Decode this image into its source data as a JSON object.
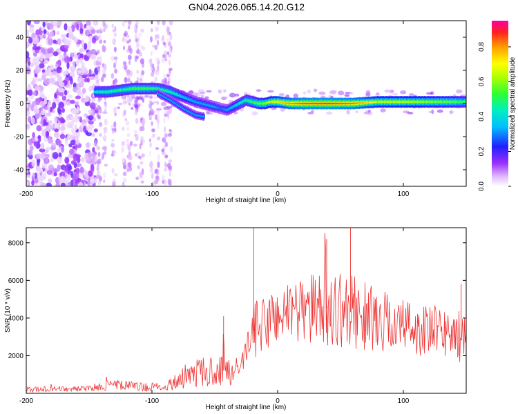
{
  "title": "GN04.2026.065.14.20.G12",
  "chart_data": [
    {
      "type": "heatmap",
      "name": "spectrogram",
      "xlabel": "Height of straight line (km)",
      "ylabel": "Frequency (Hz)",
      "xlim": [
        -200,
        150
      ],
      "ylim": [
        -50,
        50
      ],
      "xticks": [
        -200,
        -100,
        0,
        100
      ],
      "xtick_labels": [
        "-200",
        "-100",
        "0",
        "100"
      ],
      "yticks": [
        -40,
        -20,
        0,
        20,
        40
      ],
      "ytick_labels": [
        "-40",
        "-20",
        "0",
        "20",
        "40"
      ],
      "colorbar": {
        "label": "Normalized spectral amplitude",
        "range": [
          0.0,
          0.95
        ],
        "ticks": [
          0.0,
          0.2,
          0.4,
          0.6,
          0.8
        ],
        "tick_labels": [
          "0.0",
          "0.2",
          "0.4",
          "0.6",
          "0.8"
        ]
      },
      "ridge": {
        "description": "dominant frequency track vs height",
        "x": [
          -145,
          -135,
          -125,
          -115,
          -105,
          -95,
          -85,
          -75,
          -65,
          -60,
          -55,
          -50,
          -45,
          -40,
          -35,
          -30,
          -25,
          -20,
          -15,
          -10,
          -5,
          0,
          10,
          20,
          40,
          60,
          80,
          100,
          120,
          140,
          150
        ],
        "y": [
          7,
          7,
          8,
          9,
          9,
          9,
          7,
          4,
          1,
          0,
          -1,
          -2,
          -3,
          -4,
          -2,
          0,
          2,
          1,
          0,
          0,
          1,
          1,
          0,
          0,
          0,
          0,
          1,
          1,
          1,
          1,
          1
        ],
        "amplitude": [
          0.45,
          0.5,
          0.5,
          0.55,
          0.55,
          0.5,
          0.5,
          0.4,
          0.35,
          0.35,
          0.35,
          0.35,
          0.3,
          0.35,
          0.4,
          0.45,
          0.5,
          0.55,
          0.6,
          0.65,
          0.7,
          0.75,
          0.85,
          0.9,
          0.92,
          0.88,
          0.7,
          0.7,
          0.65,
          0.6,
          0.55
        ]
      },
      "secondary_ridge": {
        "x": [
          -95,
          -85,
          -75,
          -65,
          -58
        ],
        "y": [
          6,
          2,
          -3,
          -7,
          -8
        ]
      }
    },
    {
      "type": "line",
      "name": "snr",
      "xlabel": "Height of straight line (km)",
      "ylabel": "SNR (10 * v/v)",
      "xlim": [
        -200,
        150
      ],
      "ylim": [
        0,
        8800
      ],
      "xticks": [
        -200,
        -100,
        0,
        100
      ],
      "xtick_labels": [
        "-200",
        "-100",
        "0",
        "100"
      ],
      "yticks": [
        2000,
        4000,
        6000,
        8000
      ],
      "ytick_labels": [
        "2000",
        "4000",
        "6000",
        "8000"
      ],
      "color": "#ee3333",
      "envelope": {
        "x": [
          -200,
          -150,
          -140,
          -130,
          -110,
          -100,
          -90,
          -80,
          -70,
          -60,
          -50,
          -45,
          -40,
          -30,
          -25,
          -20,
          -15,
          -10,
          0,
          20,
          40,
          60,
          80,
          100,
          120,
          140,
          150
        ],
        "mean": [
          200,
          250,
          400,
          450,
          350,
          300,
          350,
          700,
          900,
          1200,
          1000,
          1300,
          1100,
          800,
          2500,
          3300,
          3500,
          3700,
          4200,
          4500,
          4500,
          4300,
          3900,
          3600,
          3300,
          3200,
          2800
        ],
        "spread": [
          150,
          150,
          250,
          300,
          250,
          250,
          250,
          500,
          600,
          800,
          700,
          1000,
          800,
          600,
          900,
          1500,
          1500,
          1500,
          1700,
          1800,
          2000,
          2000,
          1700,
          1500,
          1400,
          1400,
          1300
        ]
      },
      "peaks": [
        {
          "x": -19,
          "y": 8800
        },
        {
          "x": 58,
          "y": 8800
        },
        {
          "x": 39,
          "y": 8200
        },
        {
          "x": 146,
          "y": 5800
        },
        {
          "x": -43,
          "y": 4100
        }
      ]
    }
  ]
}
